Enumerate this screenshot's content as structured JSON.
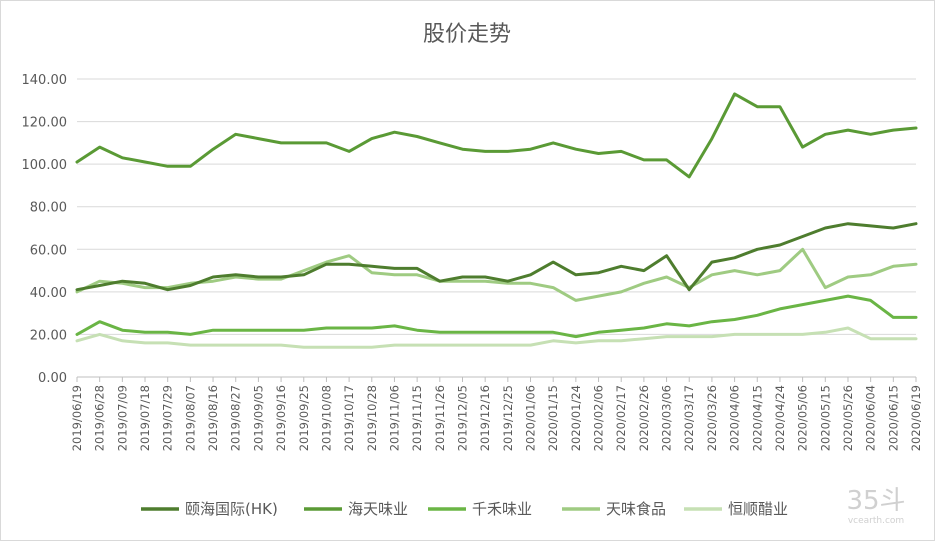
{
  "chart_data": {
    "type": "line",
    "title": "股价走势",
    "xlabel": "",
    "ylabel": "",
    "ylim": [
      0,
      140
    ],
    "yticks": [
      "0.00",
      "20.00",
      "40.00",
      "60.00",
      "80.00",
      "100.00",
      "120.00",
      "140.00"
    ],
    "grid": "horizontal",
    "legend_position": "bottom",
    "x": [
      "2019/06/19",
      "2019/06/28",
      "2019/07/09",
      "2019/07/18",
      "2019/07/29",
      "2019/08/07",
      "2019/08/16",
      "2019/08/27",
      "2019/09/05",
      "2019/09/16",
      "2019/09/25",
      "2019/10/08",
      "2019/10/17",
      "2019/10/28",
      "2019/11/06",
      "2019/11/15",
      "2019/11/26",
      "2019/12/05",
      "2019/12/16",
      "2019/12/25",
      "2020/01/06",
      "2020/01/15",
      "2020/01/24",
      "2020/02/06",
      "2020/02/17",
      "2020/02/26",
      "2020/03/06",
      "2020/03/17",
      "2020/03/26",
      "2020/04/06",
      "2020/04/15",
      "2020/04/24",
      "2020/05/06",
      "2020/05/15",
      "2020/05/26",
      "2020/06/04",
      "2020/06/15",
      "2020/06/19"
    ],
    "series": [
      {
        "name": "颐海国际(HK)",
        "color": "#4e7d2e",
        "values": [
          41,
          43,
          45,
          44,
          41,
          43,
          47,
          48,
          47,
          47,
          48,
          53,
          53,
          52,
          51,
          51,
          45,
          47,
          47,
          45,
          48,
          54,
          48,
          49,
          52,
          50,
          57,
          41,
          54,
          56,
          60,
          62,
          66,
          70,
          72,
          71,
          70,
          72
        ]
      },
      {
        "name": "海天味业",
        "color": "#5a9a35",
        "values": [
          101,
          108,
          103,
          101,
          99,
          99,
          107,
          114,
          112,
          110,
          110,
          110,
          106,
          112,
          115,
          113,
          110,
          107,
          106,
          106,
          107,
          110,
          107,
          105,
          106,
          102,
          102,
          94,
          112,
          133,
          127,
          127,
          108,
          114,
          116,
          114,
          116,
          117
        ]
      },
      {
        "name": "千禾味业",
        "color": "#6ab545",
        "values": [
          20,
          26,
          22,
          21,
          21,
          20,
          22,
          22,
          22,
          22,
          22,
          23,
          23,
          23,
          24,
          22,
          21,
          21,
          21,
          21,
          21,
          21,
          19,
          21,
          22,
          23,
          25,
          24,
          26,
          27,
          29,
          32,
          34,
          36,
          38,
          36,
          28,
          28
        ]
      },
      {
        "name": "天味食品",
        "color": "#9fcb82",
        "values": [
          40,
          45,
          44,
          42,
          42,
          44,
          45,
          47,
          46,
          46,
          50,
          54,
          57,
          49,
          48,
          48,
          45,
          45,
          45,
          44,
          44,
          42,
          36,
          38,
          40,
          44,
          47,
          42,
          48,
          50,
          48,
          50,
          60,
          42,
          47,
          48,
          52,
          53
        ]
      },
      {
        "name": "恒顺醋业",
        "color": "#c6e0b4",
        "values": [
          17,
          20,
          17,
          16,
          16,
          15,
          15,
          15,
          15,
          15,
          14,
          14,
          14,
          14,
          15,
          15,
          15,
          15,
          15,
          15,
          15,
          17,
          16,
          17,
          17,
          18,
          19,
          19,
          19,
          20,
          20,
          20,
          20,
          21,
          23,
          18,
          18,
          18
        ]
      }
    ]
  },
  "watermark": {
    "main": "35斗",
    "sub": "vcearth.com"
  }
}
